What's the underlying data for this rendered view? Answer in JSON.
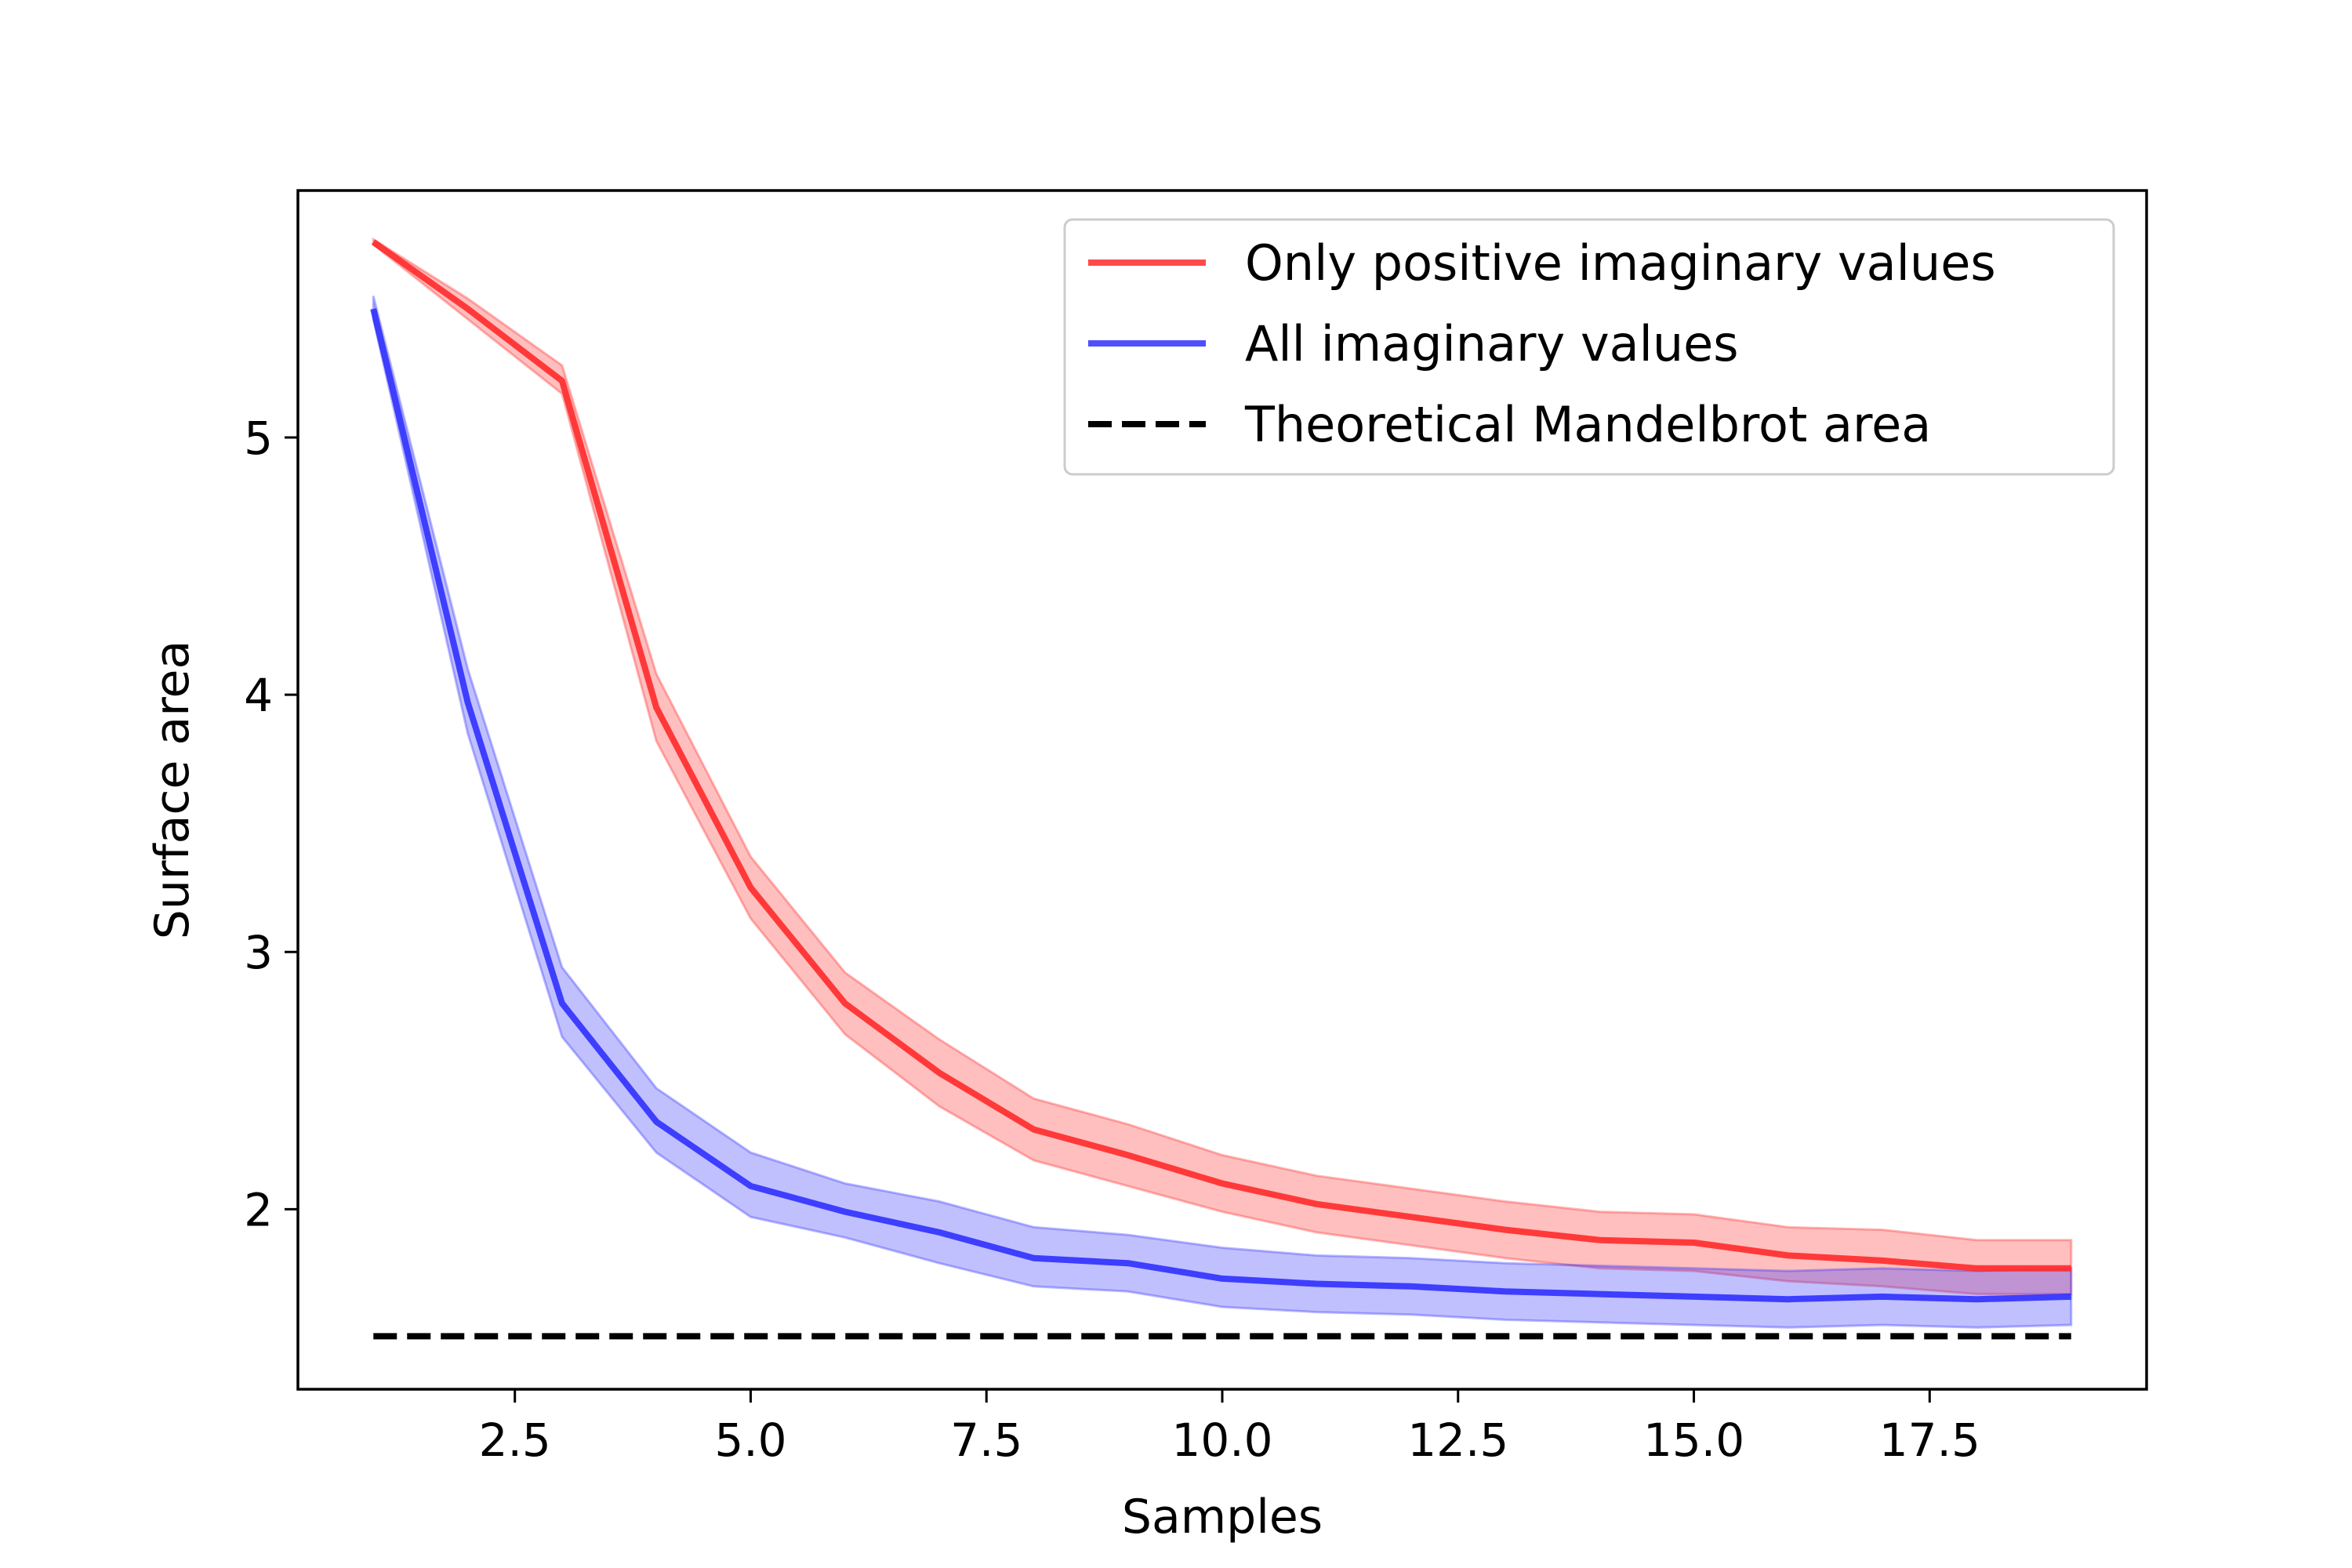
{
  "chart_data": {
    "type": "line",
    "title": "",
    "xlabel": "Samples",
    "ylabel": "Surface area",
    "xlim": [
      0.2,
      19.8
    ],
    "ylim": [
      1.3,
      5.96
    ],
    "xticks": [
      2.5,
      5.0,
      7.5,
      10.0,
      12.5,
      15.0,
      17.5
    ],
    "xtick_labels": [
      "2.5",
      "5.0",
      "7.5",
      "10.0",
      "12.5",
      "15.0",
      "17.5"
    ],
    "yticks": [
      2,
      3,
      4,
      5
    ],
    "ytick_labels": [
      "2",
      "3",
      "4",
      "5"
    ],
    "grid": false,
    "legend_position": "top-right",
    "x": [
      1,
      2,
      3,
      4,
      5,
      6,
      7,
      8,
      9,
      10,
      11,
      12,
      13,
      14,
      15,
      16,
      17,
      18,
      19
    ],
    "series": [
      {
        "name": "Only positive imaginary values",
        "color": "#ff2a2a",
        "values": [
          5.76,
          5.5,
          5.22,
          3.95,
          3.25,
          2.8,
          2.53,
          2.31,
          2.21,
          2.1,
          2.02,
          1.97,
          1.92,
          1.88,
          1.87,
          1.82,
          1.8,
          1.77,
          1.77
        ],
        "lower": [
          5.75,
          5.46,
          5.17,
          3.82,
          3.13,
          2.68,
          2.4,
          2.19,
          2.09,
          1.99,
          1.91,
          1.86,
          1.81,
          1.77,
          1.76,
          1.72,
          1.7,
          1.67,
          1.67
        ],
        "upper": [
          5.77,
          5.54,
          5.28,
          4.08,
          3.37,
          2.92,
          2.66,
          2.43,
          2.33,
          2.21,
          2.13,
          2.08,
          2.03,
          1.99,
          1.98,
          1.93,
          1.92,
          1.88,
          1.88
        ]
      },
      {
        "name": "All imaginary values",
        "color": "#3030ff",
        "values": [
          5.5,
          3.97,
          2.8,
          2.34,
          2.09,
          1.99,
          1.91,
          1.81,
          1.79,
          1.73,
          1.71,
          1.7,
          1.68,
          1.67,
          1.66,
          1.65,
          1.66,
          1.65,
          1.66
        ],
        "lower": [
          5.46,
          3.85,
          2.67,
          2.22,
          1.97,
          1.89,
          1.79,
          1.7,
          1.68,
          1.62,
          1.6,
          1.59,
          1.57,
          1.56,
          1.55,
          1.54,
          1.55,
          1.54,
          1.55
        ],
        "upper": [
          5.55,
          4.1,
          2.94,
          2.47,
          2.22,
          2.1,
          2.03,
          1.93,
          1.9,
          1.85,
          1.82,
          1.81,
          1.79,
          1.78,
          1.77,
          1.76,
          1.77,
          1.76,
          1.77
        ]
      }
    ],
    "reference_line": {
      "name": "Theoretical Mandelbrot area",
      "color": "#000000",
      "style": "dashed",
      "value": 1.506,
      "x_range": [
        1,
        19
      ]
    }
  }
}
